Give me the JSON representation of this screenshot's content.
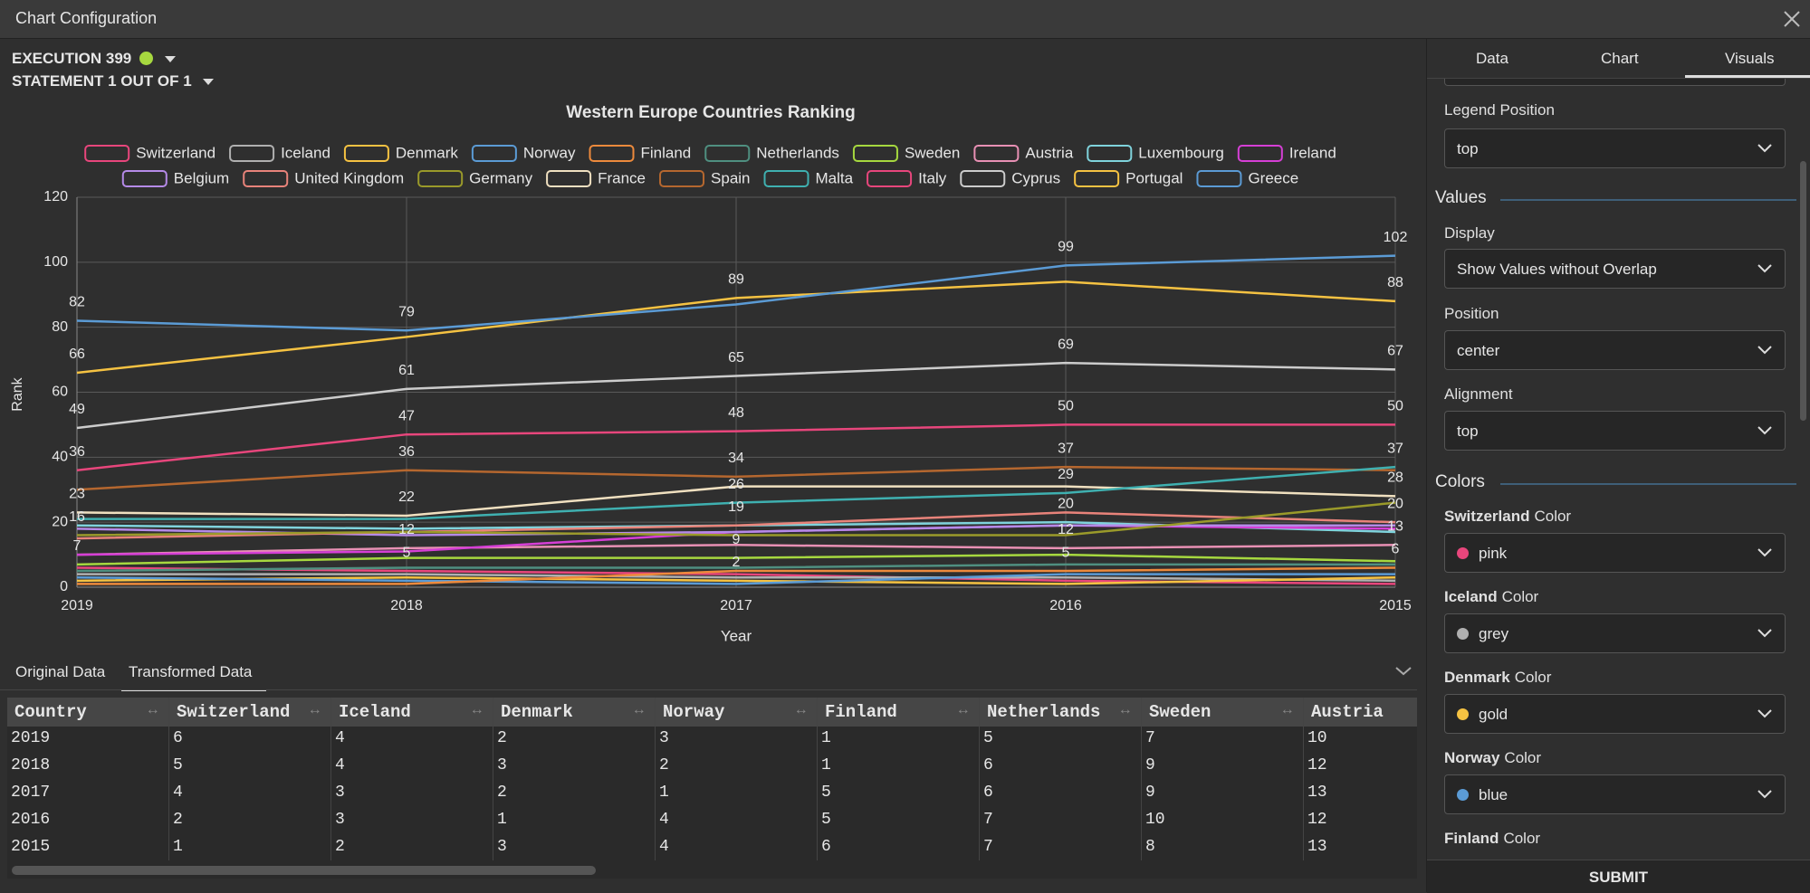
{
  "header": {
    "title": "Chart Configuration"
  },
  "execution": {
    "label": "EXECUTION 399",
    "statement": "STATEMENT 1 OUT OF 1"
  },
  "chart_data": {
    "type": "line",
    "title": "Western Europe Countries Ranking",
    "x_label": "Year",
    "y_label": "Rank",
    "categories": [
      "2019",
      "2018",
      "2017",
      "2016",
      "2015"
    ],
    "ylim": [
      0,
      120
    ],
    "yticks": [
      0,
      20,
      40,
      60,
      80,
      100,
      120
    ],
    "grid": true,
    "legend": "top",
    "series": [
      {
        "name": "Switzerland",
        "color": "#e8467c",
        "values": [
          6,
          5,
          4,
          2,
          1
        ]
      },
      {
        "name": "Iceland",
        "color": "#b0b0b0",
        "values": [
          4,
          4,
          3,
          3,
          2
        ]
      },
      {
        "name": "Denmark",
        "color": "#f5c242",
        "values": [
          2,
          3,
          2,
          1,
          3
        ]
      },
      {
        "name": "Norway",
        "color": "#5b9bd5",
        "values": [
          3,
          2,
          1,
          4,
          4
        ]
      },
      {
        "name": "Finland",
        "color": "#ed8a3c",
        "values": [
          1,
          1,
          5,
          5,
          6
        ]
      },
      {
        "name": "Netherlands",
        "color": "#4f8f80",
        "values": [
          5,
          6,
          6,
          7,
          7
        ]
      },
      {
        "name": "Sweden",
        "color": "#a6d83f",
        "values": [
          7,
          9,
          9,
          10,
          8
        ]
      },
      {
        "name": "Austria",
        "color": "#e890b4",
        "values": [
          10,
          12,
          13,
          12,
          13
        ]
      },
      {
        "name": "Luxembourg",
        "color": "#7fd3dc",
        "values": [
          19,
          18,
          19,
          20,
          17
        ]
      },
      {
        "name": "Ireland",
        "color": "#d63fd6",
        "values": [
          10,
          11,
          17,
          19,
          18
        ]
      },
      {
        "name": "Belgium",
        "color": "#b58ae8",
        "values": [
          18,
          16,
          17,
          19,
          19
        ]
      },
      {
        "name": "United Kingdom",
        "color": "#e8837a",
        "values": [
          15,
          17,
          19,
          23,
          20
        ]
      },
      {
        "name": "Germany",
        "color": "#9a9a2a",
        "values": [
          16,
          17,
          16,
          16,
          26
        ]
      },
      {
        "name": "France",
        "color": "#f0e0c0",
        "values": [
          23,
          22,
          31,
          31,
          28
        ]
      },
      {
        "name": "Spain",
        "color": "#b5672f",
        "values": [
          30,
          36,
          34,
          37,
          36
        ]
      },
      {
        "name": "Malta",
        "color": "#3fb0b0",
        "values": [
          21,
          21,
          26,
          29,
          37
        ]
      },
      {
        "name": "Italy",
        "color": "#e8467c",
        "values": [
          36,
          47,
          48,
          50,
          50
        ]
      },
      {
        "name": "Cyprus",
        "color": "#cccccc",
        "values": [
          49,
          61,
          65,
          69,
          67
        ]
      },
      {
        "name": "Portugal",
        "color": "#f5c242",
        "values": [
          66,
          77,
          89,
          94,
          88
        ]
      },
      {
        "name": "Greece",
        "color": "#5b9bd5",
        "values": [
          82,
          79,
          87,
          99,
          102
        ]
      }
    ]
  },
  "data_tabs": [
    "Original Data",
    "Transformed Data"
  ],
  "table": {
    "first_header": "Country"
  },
  "panel": {
    "tabs": [
      "Data",
      "Chart",
      "Visuals"
    ],
    "legend_position_label": "Legend Position",
    "values_heading": "Values",
    "display_label": "Display",
    "display_value": "Show Values without Overlap",
    "position_label": "Position",
    "position_value": "center",
    "alignment_label": "Alignment",
    "alignment_value": "top",
    "colors_heading": "Colors",
    "color_suffix": "Color",
    "color_names": [
      "pink",
      "grey",
      "gold",
      "blue"
    ],
    "submit": "SUBMIT"
  }
}
